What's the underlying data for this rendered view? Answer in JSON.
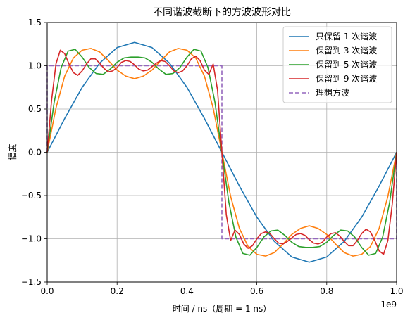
{
  "chart_data": {
    "type": "line",
    "title": "不同谐波截断下的方波波形对比",
    "xlabel": "时间 / ns（周期 = 1 ns）",
    "ylabel": "幅度",
    "x_offset_label": "1e9",
    "xlim": [
      0,
      1
    ],
    "ylim": [
      -1.5,
      1.5
    ],
    "x_scale": "linear",
    "y_scale": "linear",
    "grid": true,
    "legend_position": "top-right",
    "xticks": [
      0.0,
      0.2,
      0.4,
      0.6,
      0.8,
      1.0
    ],
    "xtick_labels": [
      "0.0",
      "0.2",
      "0.4",
      "0.6",
      "0.8",
      "1.0"
    ],
    "yticks": [
      -1.5,
      -1.0,
      -0.5,
      0.0,
      0.5,
      1.0,
      1.5
    ],
    "ytick_labels": [
      "−1.5",
      "−1.0",
      "−0.5",
      "0.0",
      "0.5",
      "1.0",
      "1.5"
    ],
    "series": [
      {
        "name": "只保留 1 次谐波",
        "color": "#1f77b4",
        "style": "solid",
        "x": [
          0,
          0.05,
          0.1,
          0.15,
          0.2,
          0.25,
          0.3,
          0.35,
          0.4,
          0.45,
          0.5,
          0.55,
          0.6,
          0.65,
          0.7,
          0.75,
          0.8,
          0.85,
          0.9,
          0.95,
          1.0
        ],
        "y": [
          0,
          0.39,
          0.75,
          1.03,
          1.21,
          1.27,
          1.21,
          1.03,
          0.75,
          0.39,
          0,
          -0.39,
          -0.75,
          -1.03,
          -1.21,
          -1.27,
          -1.21,
          -1.03,
          -0.75,
          -0.39,
          0
        ]
      },
      {
        "name": "保留到 3 次谐波",
        "color": "#ff7f0e",
        "style": "solid",
        "x": [
          0,
          0.025,
          0.05,
          0.075,
          0.1,
          0.125,
          0.15,
          0.175,
          0.2,
          0.225,
          0.25,
          0.275,
          0.3,
          0.325,
          0.35,
          0.375,
          0.4,
          0.425,
          0.45,
          0.475,
          0.5,
          0.525,
          0.55,
          0.575,
          0.6,
          0.625,
          0.65,
          0.675,
          0.7,
          0.725,
          0.75,
          0.775,
          0.8,
          0.825,
          0.85,
          0.875,
          0.9,
          0.925,
          0.95,
          0.975,
          1.0
        ],
        "y": [
          0,
          0.51,
          0.88,
          1.09,
          1.18,
          1.2,
          1.16,
          1.06,
          0.95,
          0.88,
          0.85,
          0.88,
          0.95,
          1.06,
          1.16,
          1.2,
          1.18,
          1.09,
          0.88,
          0.51,
          0,
          -0.51,
          -0.88,
          -1.09,
          -1.18,
          -1.2,
          -1.16,
          -1.06,
          -0.95,
          -0.88,
          -0.85,
          -0.88,
          -0.95,
          -1.06,
          -1.16,
          -1.2,
          -1.18,
          -1.09,
          -0.88,
          -0.51,
          0
        ]
      },
      {
        "name": "保留到 5 次谐波",
        "color": "#2ca02c",
        "style": "solid",
        "x": [
          0,
          0.02,
          0.04,
          0.06,
          0.08,
          0.1,
          0.12,
          0.14,
          0.16,
          0.18,
          0.2,
          0.22,
          0.24,
          0.26,
          0.28,
          0.3,
          0.32,
          0.34,
          0.36,
          0.38,
          0.4,
          0.42,
          0.44,
          0.46,
          0.48,
          0.5,
          0.52,
          0.54,
          0.56,
          0.58,
          0.6,
          0.62,
          0.64,
          0.66,
          0.68,
          0.7,
          0.72,
          0.74,
          0.76,
          0.78,
          0.8,
          0.82,
          0.84,
          0.86,
          0.88,
          0.9,
          0.92,
          0.94,
          0.96,
          0.98,
          1.0
        ],
        "y": [
          0,
          0.58,
          0.98,
          1.17,
          1.19,
          1.1,
          0.98,
          0.91,
          0.9,
          0.96,
          1.04,
          1.09,
          1.1,
          1.1,
          1.09,
          1.04,
          0.96,
          0.9,
          0.91,
          0.98,
          1.1,
          1.19,
          1.17,
          0.98,
          0.58,
          0,
          -0.58,
          -0.98,
          -1.17,
          -1.19,
          -1.1,
          -0.98,
          -0.91,
          -0.9,
          -0.96,
          -1.04,
          -1.09,
          -1.1,
          -1.1,
          -1.09,
          -1.04,
          -0.96,
          -0.9,
          -0.91,
          -0.98,
          -1.1,
          -1.19,
          -1.17,
          -0.98,
          -0.58,
          0
        ]
      },
      {
        "name": "保留到 9 次谐波",
        "color": "#d62728",
        "style": "solid",
        "x": [
          0,
          0.0125,
          0.025,
          0.0375,
          0.05,
          0.0625,
          0.075,
          0.0875,
          0.1,
          0.1125,
          0.125,
          0.1375,
          0.15,
          0.1625,
          0.175,
          0.1875,
          0.2,
          0.2125,
          0.225,
          0.2375,
          0.25,
          0.2625,
          0.275,
          0.2875,
          0.3,
          0.3125,
          0.325,
          0.3375,
          0.35,
          0.3625,
          0.375,
          0.3875,
          0.4,
          0.4125,
          0.425,
          0.4375,
          0.45,
          0.4625,
          0.475,
          0.4875,
          0.5,
          0.5125,
          0.525,
          0.5375,
          0.55,
          0.5625,
          0.575,
          0.5875,
          0.6,
          0.6125,
          0.625,
          0.6375,
          0.65,
          0.6625,
          0.675,
          0.6875,
          0.7,
          0.7125,
          0.725,
          0.7375,
          0.75,
          0.7625,
          0.775,
          0.7875,
          0.8,
          0.8125,
          0.825,
          0.8375,
          0.85,
          0.8625,
          0.875,
          0.8875,
          0.9,
          0.9125,
          0.925,
          0.9375,
          0.95,
          0.9625,
          0.975,
          0.9875,
          1.0
        ],
        "y": [
          0,
          0.6,
          1.02,
          1.18,
          1.14,
          1.02,
          0.92,
          0.89,
          0.94,
          1.02,
          1.08,
          1.08,
          1.03,
          0.97,
          0.93,
          0.94,
          0.98,
          1.04,
          1.06,
          1.05,
          1.01,
          0.96,
          0.94,
          0.95,
          0.99,
          1.03,
          1.06,
          1.05,
          1.0,
          0.94,
          0.92,
          0.94,
          1.0,
          1.08,
          1.11,
          1.06,
          0.95,
          0.9,
          1.02,
          0.72,
          0,
          -0.72,
          -1.02,
          -0.9,
          -0.95,
          -1.06,
          -1.11,
          -1.08,
          -1.0,
          -0.94,
          -0.92,
          -0.94,
          -1.0,
          -1.05,
          -1.06,
          -1.03,
          -0.99,
          -0.95,
          -0.94,
          -0.96,
          -1.01,
          -1.05,
          -1.06,
          -1.04,
          -0.98,
          -0.94,
          -0.93,
          -0.97,
          -1.03,
          -1.08,
          -1.08,
          -1.02,
          -0.94,
          -0.89,
          -0.92,
          -1.02,
          -1.14,
          -1.18,
          -1.02,
          -0.6,
          0
        ]
      },
      {
        "name": "理想方波",
        "color": "#9467bd",
        "style": "dashed",
        "x": [
          0,
          0,
          0.5,
          0.5,
          1.0,
          1.0
        ],
        "y": [
          0,
          1,
          1,
          -1,
          -1,
          0
        ]
      }
    ]
  }
}
